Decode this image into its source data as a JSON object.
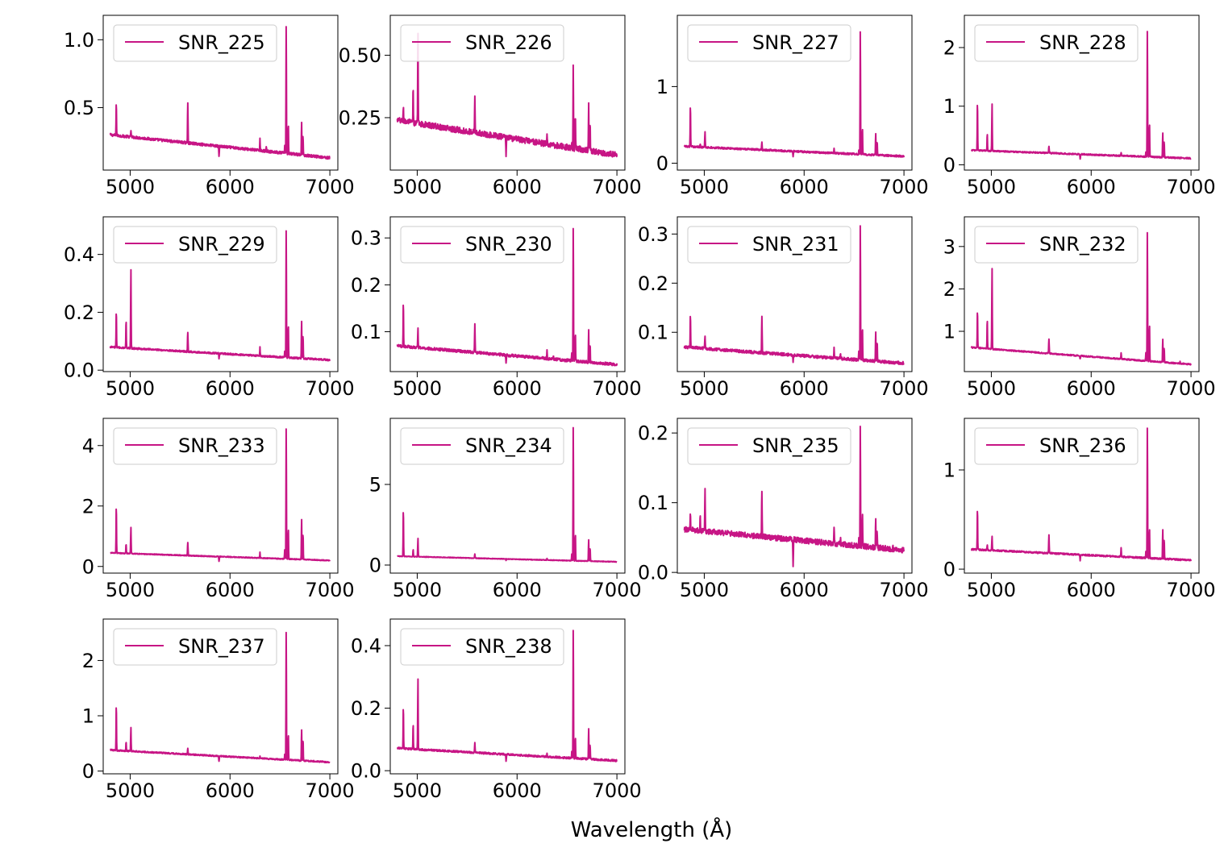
{
  "figure": {
    "xlabel": "Wavelength (Å)"
  },
  "style": {
    "line_color": "#c71585",
    "legend_border": "#cccccc"
  },
  "chart_data": [
    {
      "type": "line",
      "legend": "SNR_225",
      "xlim": [
        4730,
        7080
      ],
      "ylim": [
        0.04,
        1.18
      ],
      "xticks": [
        5000,
        6000,
        7000
      ],
      "yticks": [
        0.5,
        1.0
      ],
      "ytick_labels": [
        "0.5",
        "1.0"
      ],
      "continuum": [
        0.3,
        0.13
      ],
      "noise": 0.01,
      "lines": [
        [
          4861,
          0.25
        ],
        [
          5007,
          0.05
        ],
        [
          5577,
          0.31
        ],
        [
          5890,
          -0.07
        ],
        [
          6300,
          0.09
        ],
        [
          6364,
          0.03
        ],
        [
          6548,
          0.05
        ],
        [
          6563,
          0.95
        ],
        [
          6584,
          0.22
        ],
        [
          6717,
          0.24
        ],
        [
          6731,
          0.14
        ]
      ]
    },
    {
      "type": "line",
      "legend": "SNR_226",
      "xlim": [
        4730,
        7080
      ],
      "ylim": [
        0.04,
        0.66
      ],
      "xticks": [
        5000,
        6000,
        7000
      ],
      "yticks": [
        0.25,
        0.5
      ],
      "ytick_labels": [
        "0.25",
        "0.50"
      ],
      "continuum": [
        0.24,
        0.1
      ],
      "noise": 0.012,
      "lines": [
        [
          4861,
          0.06
        ],
        [
          4959,
          0.14
        ],
        [
          5007,
          0.38
        ],
        [
          5577,
          0.14
        ],
        [
          5890,
          -0.08
        ],
        [
          6300,
          0.05
        ],
        [
          6548,
          0.03
        ],
        [
          6563,
          0.33
        ],
        [
          6584,
          0.14
        ],
        [
          6717,
          0.19
        ],
        [
          6731,
          0.12
        ]
      ]
    },
    {
      "type": "line",
      "legend": "SNR_227",
      "xlim": [
        4730,
        7080
      ],
      "ylim": [
        -0.09,
        1.93
      ],
      "xticks": [
        5000,
        6000,
        7000
      ],
      "yticks": [
        0,
        1
      ],
      "ytick_labels": [
        "0",
        "1"
      ],
      "continuum": [
        0.22,
        0.09
      ],
      "noise": 0.012,
      "lines": [
        [
          4861,
          0.55
        ],
        [
          4959,
          0.05
        ],
        [
          5007,
          0.2
        ],
        [
          5577,
          0.1
        ],
        [
          5890,
          -0.06
        ],
        [
          6300,
          0.06
        ],
        [
          6548,
          0.06
        ],
        [
          6563,
          1.65
        ],
        [
          6584,
          0.35
        ],
        [
          6717,
          0.28
        ],
        [
          6731,
          0.18
        ]
      ]
    },
    {
      "type": "line",
      "legend": "SNR_228",
      "xlim": [
        4730,
        7080
      ],
      "ylim": [
        -0.09,
        2.55
      ],
      "xticks": [
        5000,
        6000,
        7000
      ],
      "yticks": [
        0,
        1,
        2
      ],
      "ytick_labels": [
        "0",
        "1",
        "2"
      ],
      "continuum": [
        0.25,
        0.11
      ],
      "noise": 0.012,
      "lines": [
        [
          4861,
          0.85
        ],
        [
          4959,
          0.3
        ],
        [
          5007,
          0.82
        ],
        [
          5577,
          0.12
        ],
        [
          5890,
          -0.08
        ],
        [
          6300,
          0.06
        ],
        [
          6548,
          0.08
        ],
        [
          6563,
          2.2
        ],
        [
          6584,
          0.6
        ],
        [
          6717,
          0.42
        ],
        [
          6731,
          0.28
        ]
      ]
    },
    {
      "type": "line",
      "legend": "SNR_229",
      "xlim": [
        4730,
        7080
      ],
      "ylim": [
        -0.005,
        0.53
      ],
      "xticks": [
        5000,
        6000,
        7000
      ],
      "yticks": [
        0.0,
        0.2,
        0.4
      ],
      "ytick_labels": [
        "0.0",
        "0.2",
        "0.4"
      ],
      "continuum": [
        0.08,
        0.035
      ],
      "noise": 0.003,
      "lines": [
        [
          4861,
          0.13
        ],
        [
          4959,
          0.1
        ],
        [
          5007,
          0.28
        ],
        [
          5577,
          0.07
        ],
        [
          5890,
          -0.02
        ],
        [
          6300,
          0.03
        ],
        [
          6548,
          0.02
        ],
        [
          6563,
          0.45
        ],
        [
          6584,
          0.12
        ],
        [
          6717,
          0.13
        ],
        [
          6731,
          0.08
        ]
      ]
    },
    {
      "type": "line",
      "legend": "SNR_230",
      "xlim": [
        4730,
        7080
      ],
      "ylim": [
        0.015,
        0.345
      ],
      "xticks": [
        5000,
        6000,
        7000
      ],
      "yticks": [
        0.1,
        0.2,
        0.3
      ],
      "ytick_labels": [
        "0.1",
        "0.2",
        "0.3"
      ],
      "continuum": [
        0.07,
        0.03
      ],
      "noise": 0.003,
      "lines": [
        [
          4861,
          0.095
        ],
        [
          5007,
          0.04
        ],
        [
          5577,
          0.06
        ],
        [
          5890,
          -0.015
        ],
        [
          6300,
          0.02
        ],
        [
          6364,
          0.01
        ],
        [
          6548,
          0.02
        ],
        [
          6563,
          0.29
        ],
        [
          6584,
          0.06
        ],
        [
          6717,
          0.07
        ],
        [
          6731,
          0.04
        ]
      ]
    },
    {
      "type": "line",
      "legend": "SNR_231",
      "xlim": [
        4730,
        7080
      ],
      "ylim": [
        0.02,
        0.335
      ],
      "xticks": [
        5000,
        6000,
        7000
      ],
      "yticks": [
        0.1,
        0.2,
        0.3
      ],
      "ytick_labels": [
        "0.1",
        "0.2",
        "0.3"
      ],
      "continuum": [
        0.07,
        0.037
      ],
      "noise": 0.003,
      "lines": [
        [
          4861,
          0.07
        ],
        [
          5007,
          0.025
        ],
        [
          5577,
          0.075
        ],
        [
          5890,
          -0.015
        ],
        [
          6300,
          0.02
        ],
        [
          6364,
          0.01
        ],
        [
          6548,
          0.02
        ],
        [
          6563,
          0.28
        ],
        [
          6584,
          0.07
        ],
        [
          6717,
          0.06
        ],
        [
          6731,
          0.04
        ]
      ]
    },
    {
      "type": "line",
      "legend": "SNR_232",
      "xlim": [
        4730,
        7080
      ],
      "ylim": [
        0.05,
        3.7
      ],
      "xticks": [
        5000,
        6000,
        7000
      ],
      "yticks": [
        1,
        2,
        3
      ],
      "ytick_labels": [
        "1",
        "2",
        "3"
      ],
      "continuum": [
        0.62,
        0.22
      ],
      "noise": 0.015,
      "lines": [
        [
          4861,
          0.92
        ],
        [
          4959,
          0.7
        ],
        [
          5007,
          1.95
        ],
        [
          5577,
          0.35
        ],
        [
          5890,
          -0.08
        ],
        [
          6300,
          0.15
        ],
        [
          6548,
          0.2
        ],
        [
          6563,
          3.1
        ],
        [
          6584,
          0.9
        ],
        [
          6717,
          0.55
        ],
        [
          6731,
          0.35
        ],
        [
          6890,
          0.05
        ]
      ]
    },
    {
      "type": "line",
      "legend": "SNR_233",
      "xlim": [
        4730,
        7080
      ],
      "ylim": [
        -0.22,
        4.9
      ],
      "xticks": [
        5000,
        6000,
        7000
      ],
      "yticks": [
        0,
        2,
        4
      ],
      "ytick_labels": [
        "0",
        "2",
        "4"
      ],
      "continuum": [
        0.45,
        0.2
      ],
      "noise": 0.015,
      "lines": [
        [
          4861,
          1.6
        ],
        [
          4959,
          0.32
        ],
        [
          5007,
          0.9
        ],
        [
          5577,
          0.45
        ],
        [
          5890,
          -0.15
        ],
        [
          6300,
          0.18
        ],
        [
          6548,
          0.3
        ],
        [
          6563,
          4.4
        ],
        [
          6584,
          1.05
        ],
        [
          6717,
          1.35
        ],
        [
          6731,
          0.9
        ]
      ]
    },
    {
      "type": "line",
      "legend": "SNR_234",
      "xlim": [
        4730,
        7080
      ],
      "ylim": [
        -0.5,
        9.1
      ],
      "xticks": [
        5000,
        6000,
        7000
      ],
      "yticks": [
        0,
        5
      ],
      "ytick_labels": [
        "0",
        "5"
      ],
      "continuum": [
        0.55,
        0.2
      ],
      "noise": 0.02,
      "lines": [
        [
          4861,
          3.0
        ],
        [
          4959,
          0.45
        ],
        [
          5007,
          1.15
        ],
        [
          5577,
          0.25
        ],
        [
          5890,
          -0.1
        ],
        [
          6300,
          0.1
        ],
        [
          6548,
          0.4
        ],
        [
          6563,
          8.45
        ],
        [
          6584,
          1.75
        ],
        [
          6717,
          1.35
        ],
        [
          6731,
          0.85
        ]
      ]
    },
    {
      "type": "line",
      "legend": "SNR_235",
      "xlim": [
        4730,
        7080
      ],
      "ylim": [
        -0.001,
        0.221
      ],
      "xticks": [
        5000,
        6000,
        7000
      ],
      "yticks": [
        0.0,
        0.1,
        0.2
      ],
      "ytick_labels": [
        "0.0",
        "0.1",
        "0.2"
      ],
      "continuum": [
        0.062,
        0.032
      ],
      "noise": 0.004,
      "lines": [
        [
          4861,
          0.028
        ],
        [
          4959,
          0.025
        ],
        [
          5007,
          0.063
        ],
        [
          5577,
          0.065
        ],
        [
          5890,
          -0.035
        ],
        [
          6300,
          0.027
        ],
        [
          6364,
          0.008
        ],
        [
          6548,
          0.015
        ],
        [
          6563,
          0.172
        ],
        [
          6584,
          0.049
        ],
        [
          6717,
          0.042
        ],
        [
          6731,
          0.025
        ],
        [
          6890,
          0.008
        ]
      ]
    },
    {
      "type": "line",
      "legend": "SNR_236",
      "xlim": [
        4730,
        7080
      ],
      "ylim": [
        -0.04,
        1.52
      ],
      "xticks": [
        5000,
        6000,
        7000
      ],
      "yticks": [
        0,
        1
      ],
      "ytick_labels": [
        "0",
        "1"
      ],
      "continuum": [
        0.2,
        0.09
      ],
      "noise": 0.008,
      "lines": [
        [
          4861,
          0.42
        ],
        [
          4959,
          0.05
        ],
        [
          5007,
          0.15
        ],
        [
          5577,
          0.19
        ],
        [
          5890,
          -0.06
        ],
        [
          6300,
          0.09
        ],
        [
          6548,
          0.07
        ],
        [
          6563,
          1.35
        ],
        [
          6584,
          0.32
        ],
        [
          6717,
          0.3
        ],
        [
          6731,
          0.2
        ]
      ]
    },
    {
      "type": "line",
      "legend": "SNR_237",
      "xlim": [
        4730,
        7080
      ],
      "ylim": [
        -0.05,
        2.75
      ],
      "xticks": [
        5000,
        6000,
        7000
      ],
      "yticks": [
        0,
        1,
        2
      ],
      "ytick_labels": [
        "0",
        "1",
        "2"
      ],
      "continuum": [
        0.38,
        0.16
      ],
      "noise": 0.012,
      "lines": [
        [
          4861,
          0.85
        ],
        [
          4959,
          0.17
        ],
        [
          5007,
          0.43
        ],
        [
          5577,
          0.12
        ],
        [
          5890,
          -0.1
        ],
        [
          6300,
          0.05
        ],
        [
          6548,
          0.1
        ],
        [
          6563,
          2.37
        ],
        [
          6584,
          0.47
        ],
        [
          6717,
          0.57
        ],
        [
          6731,
          0.4
        ]
      ]
    },
    {
      "type": "line",
      "legend": "SNR_238",
      "xlim": [
        4730,
        7080
      ],
      "ylim": [
        -0.01,
        0.485
      ],
      "xticks": [
        5000,
        6000,
        7000
      ],
      "yticks": [
        0.0,
        0.2,
        0.4
      ],
      "ytick_labels": [
        "0.0",
        "0.2",
        "0.4"
      ],
      "continuum": [
        0.072,
        0.032
      ],
      "noise": 0.003,
      "lines": [
        [
          4861,
          0.14
        ],
        [
          4959,
          0.08
        ],
        [
          5007,
          0.23
        ],
        [
          5577,
          0.03
        ],
        [
          5890,
          -0.02
        ],
        [
          6300,
          0.01
        ],
        [
          6548,
          0.02
        ],
        [
          6563,
          0.42
        ],
        [
          6584,
          0.07
        ],
        [
          6717,
          0.1
        ],
        [
          6731,
          0.05
        ]
      ]
    }
  ]
}
